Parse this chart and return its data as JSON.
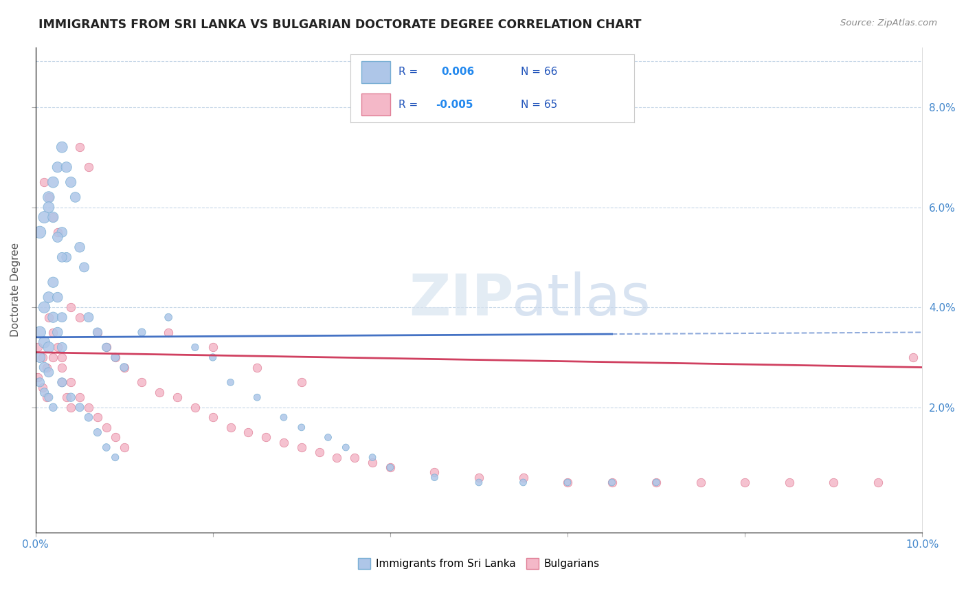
{
  "title": "IMMIGRANTS FROM SRI LANKA VS BULGARIAN DOCTORATE DEGREE CORRELATION CHART",
  "source_text": "Source: ZipAtlas.com",
  "ylabel": "Doctorate Degree",
  "xlim": [
    0.0,
    0.1
  ],
  "ylim": [
    -0.005,
    0.092
  ],
  "background_color": "#ffffff",
  "grid_color": "#c8d8e8",
  "series1_color": "#aec6e8",
  "series1_edge": "#7aafd4",
  "series2_color": "#f4b8c8",
  "series2_edge": "#e08098",
  "line1_color": "#4472c4",
  "line2_color": "#d04060",
  "legend_label1": "Immigrants from Sri Lanka",
  "legend_label2": "Bulgarians",
  "ytick_vals": [
    0.02,
    0.04,
    0.06,
    0.08
  ],
  "ytick_labs": [
    "2.0%",
    "4.0%",
    "6.0%",
    "8.0%"
  ],
  "tick_color": "#4488cc",
  "watermark_zip_color": "#d8e4f0",
  "watermark_atlas_color": "#c8d8ec",
  "series1_x": [
    0.0005,
    0.001,
    0.0015,
    0.0005,
    0.001,
    0.0015,
    0.0005,
    0.001,
    0.0015,
    0.002,
    0.0005,
    0.001,
    0.0015,
    0.002,
    0.0025,
    0.003,
    0.0035,
    0.001,
    0.0015,
    0.002,
    0.0025,
    0.003,
    0.0015,
    0.002,
    0.0025,
    0.003,
    0.002,
    0.0025,
    0.003,
    0.003,
    0.0035,
    0.004,
    0.0045,
    0.005,
    0.0055,
    0.006,
    0.007,
    0.008,
    0.009,
    0.01,
    0.012,
    0.015,
    0.018,
    0.02,
    0.022,
    0.025,
    0.028,
    0.03,
    0.033,
    0.035,
    0.038,
    0.04,
    0.045,
    0.05,
    0.055,
    0.06,
    0.065,
    0.07,
    0.003,
    0.004,
    0.005,
    0.006,
    0.007,
    0.008,
    0.009
  ],
  "series1_y": [
    0.035,
    0.033,
    0.032,
    0.03,
    0.028,
    0.027,
    0.025,
    0.023,
    0.022,
    0.02,
    0.055,
    0.058,
    0.062,
    0.065,
    0.068,
    0.055,
    0.05,
    0.04,
    0.042,
    0.038,
    0.035,
    0.032,
    0.06,
    0.058,
    0.054,
    0.05,
    0.045,
    0.042,
    0.038,
    0.072,
    0.068,
    0.065,
    0.062,
    0.052,
    0.048,
    0.038,
    0.035,
    0.032,
    0.03,
    0.028,
    0.035,
    0.038,
    0.032,
    0.03,
    0.025,
    0.022,
    0.018,
    0.016,
    0.014,
    0.012,
    0.01,
    0.008,
    0.006,
    0.005,
    0.005,
    0.005,
    0.005,
    0.005,
    0.025,
    0.022,
    0.02,
    0.018,
    0.015,
    0.012,
    0.01
  ],
  "series1_sizes": [
    150,
    140,
    130,
    120,
    110,
    100,
    90,
    80,
    75,
    70,
    160,
    150,
    140,
    130,
    120,
    110,
    100,
    140,
    130,
    120,
    110,
    100,
    130,
    120,
    110,
    100,
    120,
    110,
    100,
    130,
    120,
    120,
    110,
    110,
    100,
    100,
    90,
    80,
    75,
    70,
    65,
    60,
    55,
    55,
    50,
    50,
    50,
    50,
    50,
    50,
    50,
    50,
    50,
    50,
    50,
    50,
    50,
    50,
    90,
    80,
    75,
    70,
    65,
    60,
    55
  ],
  "series2_x": [
    0.0003,
    0.0008,
    0.0013,
    0.0003,
    0.0008,
    0.0013,
    0.001,
    0.0015,
    0.002,
    0.0025,
    0.0015,
    0.002,
    0.0025,
    0.003,
    0.003,
    0.0035,
    0.004,
    0.004,
    0.005,
    0.005,
    0.006,
    0.007,
    0.008,
    0.009,
    0.01,
    0.012,
    0.014,
    0.016,
    0.018,
    0.02,
    0.022,
    0.024,
    0.026,
    0.028,
    0.03,
    0.032,
    0.034,
    0.036,
    0.038,
    0.04,
    0.045,
    0.05,
    0.055,
    0.06,
    0.065,
    0.07,
    0.075,
    0.08,
    0.085,
    0.09,
    0.095,
    0.099,
    0.002,
    0.003,
    0.004,
    0.005,
    0.006,
    0.007,
    0.008,
    0.009,
    0.01,
    0.015,
    0.02,
    0.025,
    0.03
  ],
  "series2_y": [
    0.032,
    0.03,
    0.028,
    0.026,
    0.024,
    0.022,
    0.065,
    0.062,
    0.058,
    0.055,
    0.038,
    0.035,
    0.032,
    0.03,
    0.025,
    0.022,
    0.02,
    0.04,
    0.038,
    0.072,
    0.068,
    0.035,
    0.032,
    0.03,
    0.028,
    0.025,
    0.023,
    0.022,
    0.02,
    0.018,
    0.016,
    0.015,
    0.014,
    0.013,
    0.012,
    0.011,
    0.01,
    0.01,
    0.009,
    0.008,
    0.007,
    0.006,
    0.006,
    0.005,
    0.005,
    0.005,
    0.005,
    0.005,
    0.005,
    0.005,
    0.005,
    0.03,
    0.03,
    0.028,
    0.025,
    0.022,
    0.02,
    0.018,
    0.016,
    0.014,
    0.012,
    0.035,
    0.032,
    0.028,
    0.025
  ],
  "line1_x_solid_end": 0.065,
  "line1_start_y": 0.034,
  "line1_end_y": 0.035,
  "line2_start_y": 0.031,
  "line2_end_y": 0.028
}
